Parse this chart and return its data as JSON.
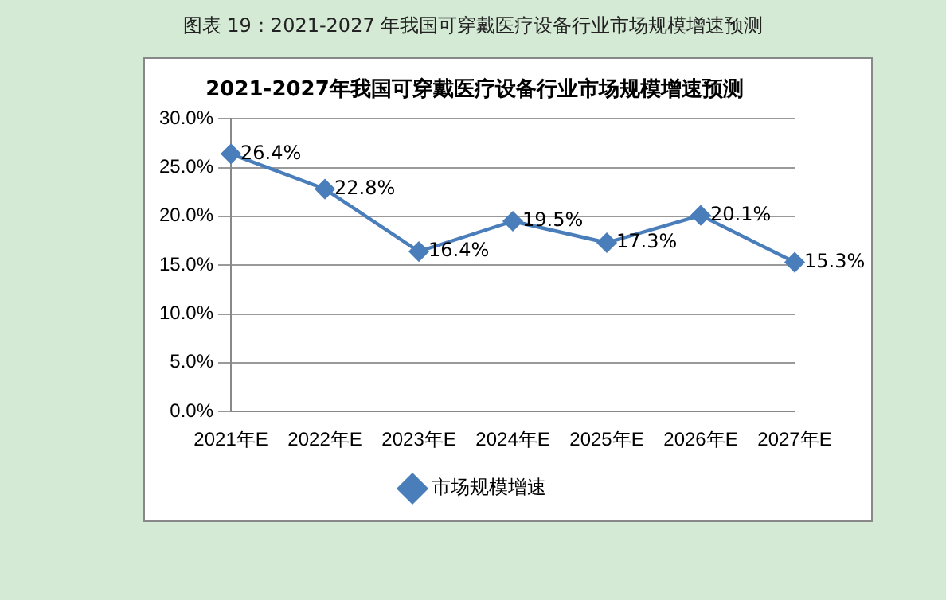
{
  "chart_data": {
    "type": "line",
    "title": "2021-2027年我国可穿戴医疗设备行业市场规模增速预测",
    "annotations": [
      "图表 19：2021-2027 年我国可穿戴医疗设备行业市场规模增速预测"
    ],
    "categories": [
      "2021年E",
      "2022年E",
      "2023年E",
      "2024年E",
      "2025年E",
      "2026年E",
      "2027年E"
    ],
    "series": [
      {
        "name": "市场规模增速",
        "color": "#4a7ebb",
        "values": [
          26.4,
          22.8,
          16.4,
          19.5,
          17.3,
          20.1,
          15.3
        ],
        "value_labels": [
          "26.4%",
          "22.8%",
          "16.4%",
          "19.5%",
          "17.3%",
          "20.1%",
          "15.3%"
        ]
      }
    ],
    "ylim": [
      0,
      30
    ],
    "yticks": [
      {
        "value": 0,
        "label": "0.0%"
      },
      {
        "value": 5,
        "label": "5.0%"
      },
      {
        "value": 10,
        "label": "10.0%"
      },
      {
        "value": 15,
        "label": "15.0%"
      },
      {
        "value": 20,
        "label": "20.0%"
      },
      {
        "value": 25,
        "label": "25.0%"
      },
      {
        "value": 30,
        "label": "30.0%"
      }
    ],
    "grid": "y",
    "legend": "bottom",
    "marker": "diamond",
    "line_style": "solid"
  }
}
